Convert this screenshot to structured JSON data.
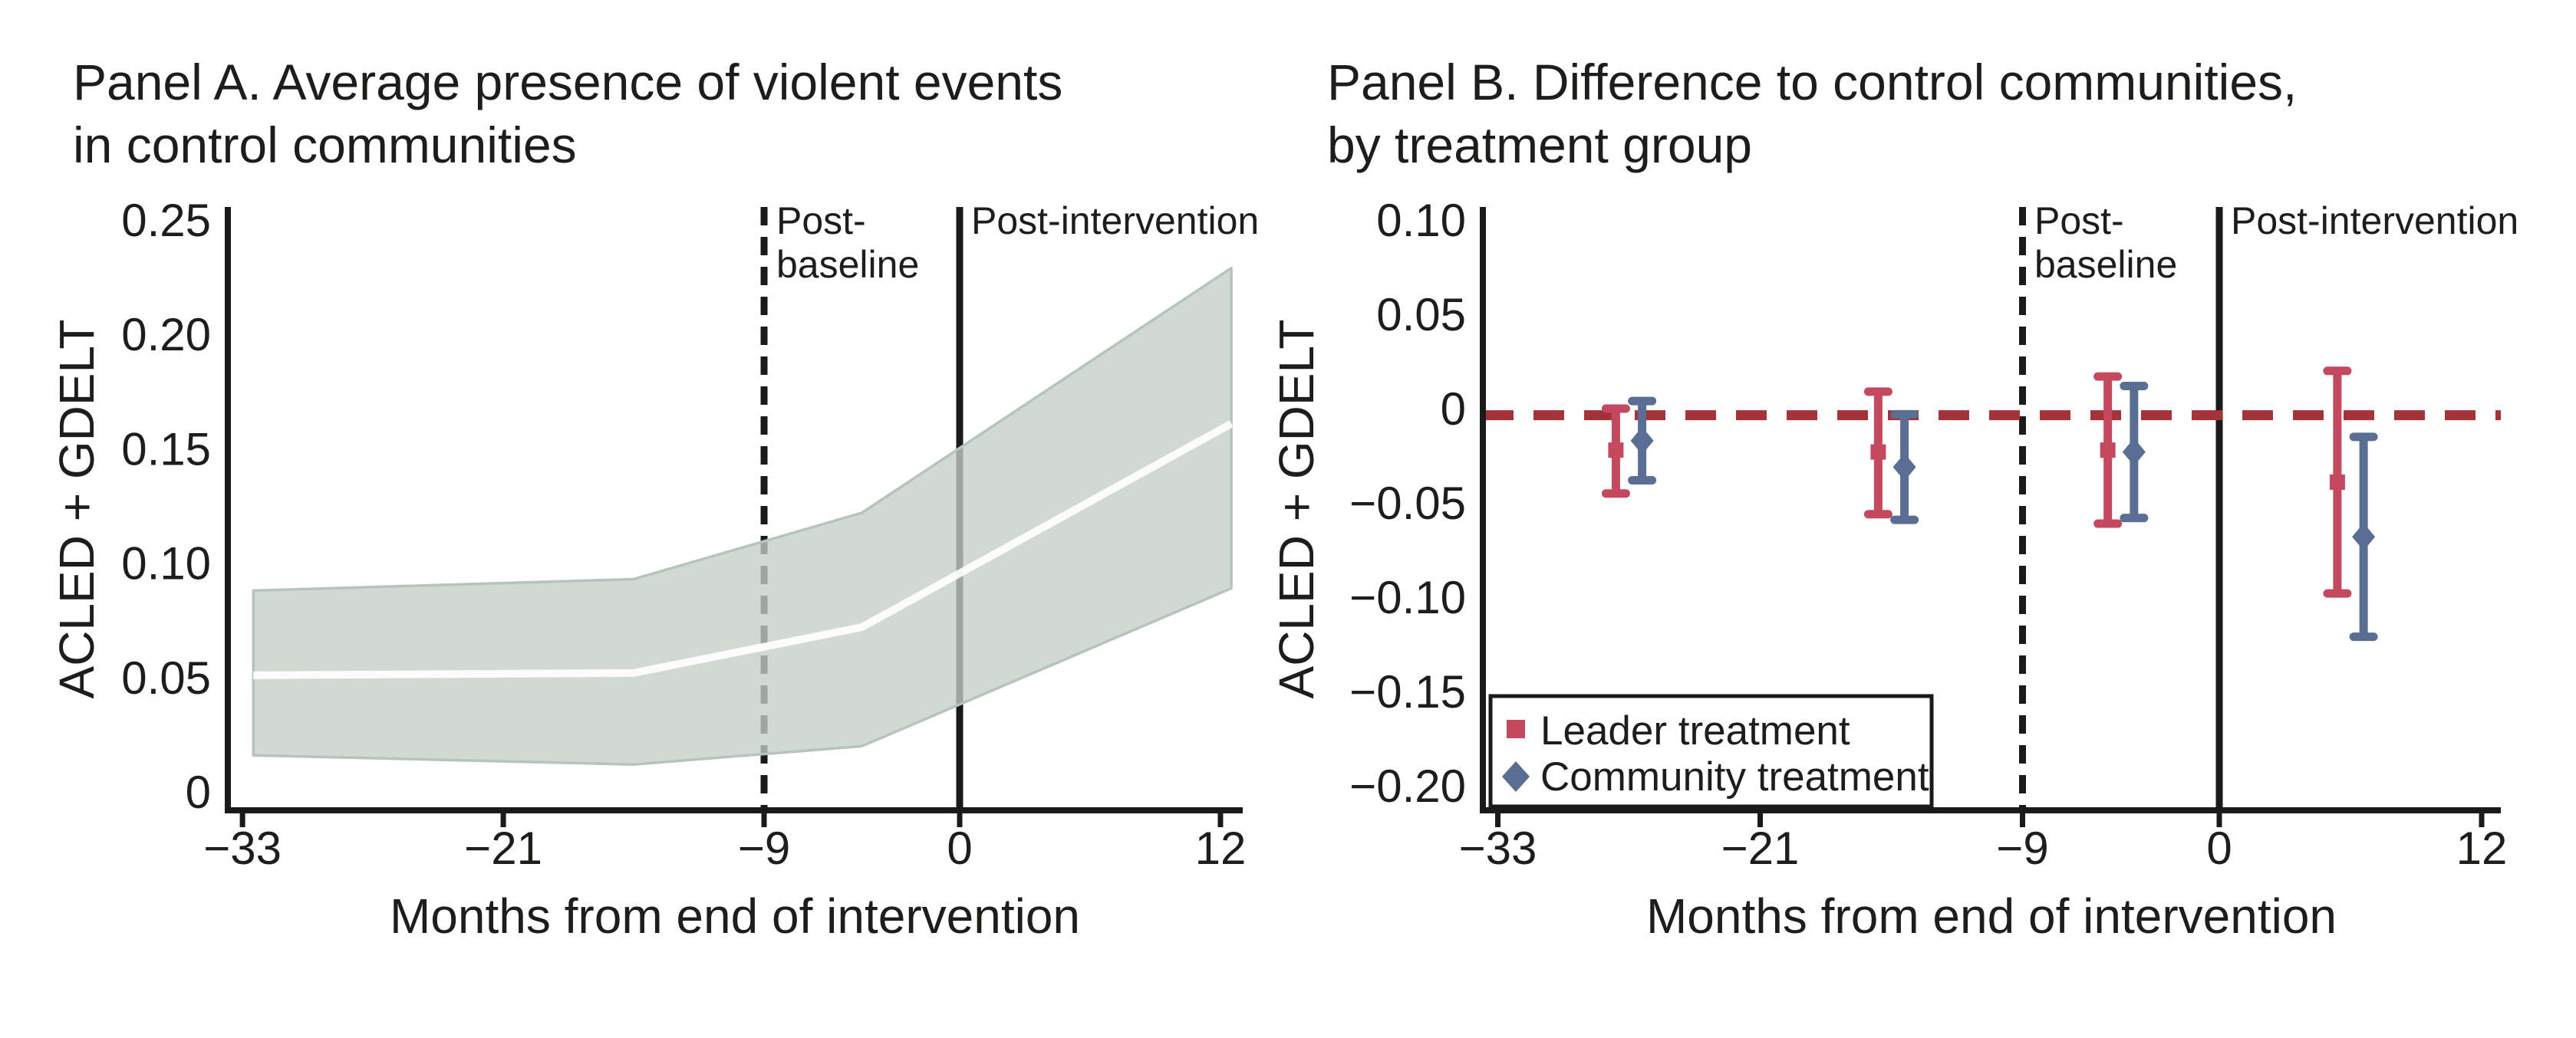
{
  "figure": {
    "background": "#ffffff"
  },
  "colors": {
    "text": "#1d1d1b",
    "axis": "#1a1a1a",
    "band_fill": "#c4cec7",
    "band_edge": "#b7c4be",
    "mean_line": "#ffffff",
    "leader": "#c4495e",
    "community": "#5a6e94",
    "ref_line": "#a43339"
  },
  "panel_a": {
    "title_line1": "Panel A. Average presence of violent events",
    "title_line2": "in control communities",
    "ylabel": "ACLED + GDELT",
    "xlabel": "Months from end of intervention",
    "post_baseline_line1": "Post-",
    "post_baseline_line2": "baseline",
    "post_intervention": "Post-intervention"
  },
  "panel_b": {
    "title_line1": "Panel B. Difference to control communities,",
    "title_line2": "by treatment group",
    "ylabel": "ACLED + GDELT",
    "xlabel": "Months from end of intervention",
    "post_baseline_line1": "Post-",
    "post_baseline_line2": "baseline",
    "post_intervention": "Post-intervention",
    "legend": {
      "items": [
        {
          "label": "Leader treatment",
          "marker": "square",
          "color": "#c4495e"
        },
        {
          "label": "Community treatment",
          "marker": "diamond",
          "color": "#5a6e94"
        }
      ]
    }
  },
  "chart_data": [
    {
      "type": "area",
      "panel": "A",
      "title": "Panel A. Average presence of violent events in control communities",
      "xlabel": "Months from end of intervention",
      "ylabel": "ACLED + GDELT",
      "xlim": [
        -33.7,
        13.0
      ],
      "ylim": [
        0,
        0.25
      ],
      "grid": false,
      "legend_position": "none",
      "xticks": [
        -33,
        -21,
        -9,
        0,
        12
      ],
      "xtick_labels": [
        "−33",
        "−21",
        "−9",
        "0",
        "12"
      ],
      "yticks": [
        0.25,
        0.2,
        0.15,
        0.1,
        0.05,
        0
      ],
      "ytick_labels": [
        "0.25",
        "0.20",
        "0.15",
        "0.10",
        "0.05",
        "0"
      ],
      "x": [
        -32.5,
        -15,
        -4.5,
        12.5
      ],
      "mean": [
        0.051,
        0.052,
        0.072,
        0.161
      ],
      "ci_upper": [
        0.088,
        0.093,
        0.122,
        0.229
      ],
      "ci_lower": [
        0.016,
        0.012,
        0.02,
        0.089
      ],
      "vlines": [
        {
          "x": -9,
          "style": "dashed",
          "label": [
            "Post-",
            "baseline"
          ]
        },
        {
          "x": 0,
          "style": "solid",
          "label": [
            "Post-intervention"
          ]
        }
      ]
    },
    {
      "type": "scatter",
      "panel": "B",
      "title": "Panel B. Difference to control communities, by treatment group",
      "xlabel": "Months from end of intervention",
      "ylabel": "ACLED + GDELT",
      "xlim": [
        -33.7,
        13.0
      ],
      "ylim": [
        -0.2,
        0.1
      ],
      "grid": false,
      "legend_position": "lower left",
      "xticks": [
        -33,
        -21,
        -9,
        0,
        12
      ],
      "xtick_labels": [
        "−33",
        "−21",
        "−9",
        "0",
        "12"
      ],
      "yticks": [
        0.1,
        0.05,
        0,
        -0.05,
        -0.1,
        -0.15,
        -0.2
      ],
      "ytick_labels": [
        "0.10",
        "0.05",
        "0",
        "−0.05",
        "−0.10",
        "−0.15",
        "−0.20"
      ],
      "ref_line": {
        "y": -0.0035,
        "style": "dashed",
        "color": "#a43339"
      },
      "vlines": [
        {
          "x": -9,
          "style": "dashed",
          "label": [
            "Post-",
            "baseline"
          ]
        },
        {
          "x": 0,
          "style": "solid",
          "label": [
            "Post-intervention"
          ]
        }
      ],
      "series": [
        {
          "name": "Leader treatment",
          "marker": "square",
          "color": "#c4495e",
          "x": [
            -27.6,
            -15.6,
            -5.1,
            5.4
          ],
          "y": [
            -0.022,
            -0.023,
            -0.022,
            -0.039
          ],
          "ci_high": [
            0.0,
            0.009,
            0.017,
            0.02
          ],
          "ci_low": [
            -0.045,
            -0.056,
            -0.061,
            -0.098
          ]
        },
        {
          "name": "Community treatment",
          "marker": "diamond",
          "color": "#5a6e94",
          "x": [
            -26.4,
            -14.4,
            -3.9,
            6.6
          ],
          "y": [
            -0.017,
            -0.031,
            -0.023,
            -0.068
          ],
          "ci_high": [
            0.004,
            -0.003,
            0.012,
            -0.015
          ],
          "ci_low": [
            -0.038,
            -0.059,
            -0.058,
            -0.121
          ]
        }
      ]
    }
  ]
}
